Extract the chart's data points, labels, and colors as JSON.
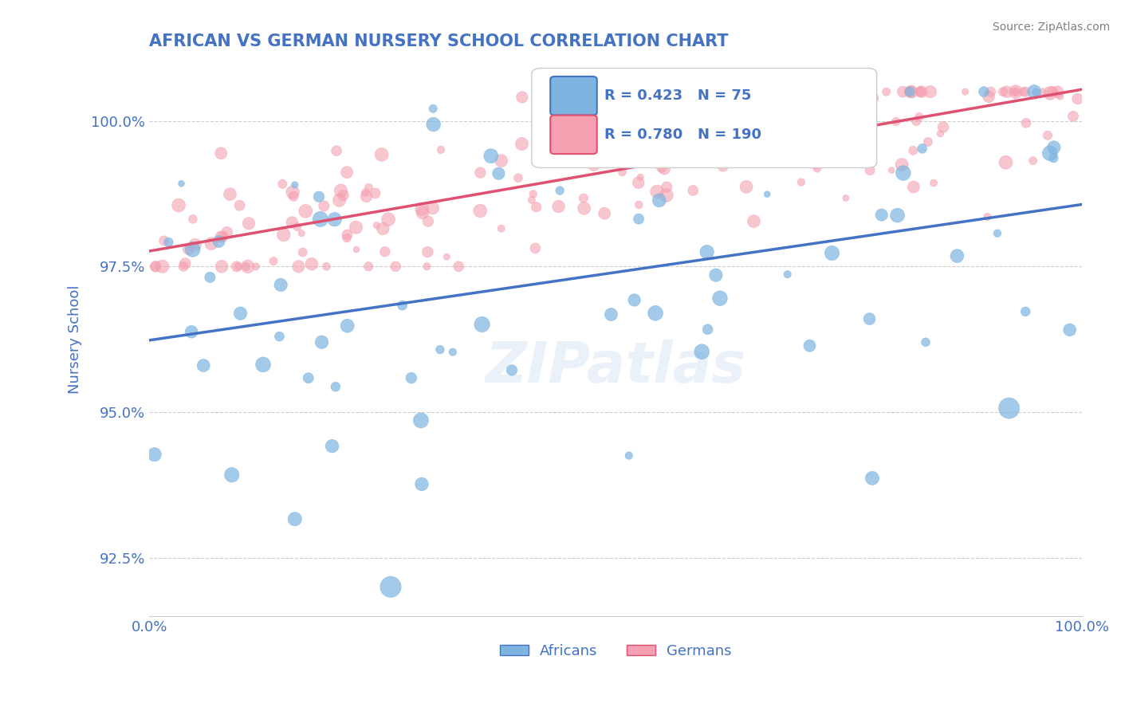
{
  "title": "AFRICAN VS GERMAN NURSERY SCHOOL CORRELATION CHART",
  "source": "Source: ZipAtlas.com",
  "xlabel": "",
  "ylabel": "Nursery School",
  "xlim": [
    0.0,
    100.0
  ],
  "ylim": [
    91.5,
    101.0
  ],
  "yticks": [
    92.5,
    95.0,
    97.5,
    100.0
  ],
  "ytick_labels": [
    "92.5%",
    "95.0%",
    "97.5%",
    "100.0%"
  ],
  "xticks": [
    0.0,
    100.0
  ],
  "xtick_labels": [
    "0.0%",
    "100.0%"
  ],
  "african_R": 0.423,
  "african_N": 75,
  "german_R": 0.78,
  "german_N": 190,
  "african_color": "#7EB4E2",
  "german_color": "#F4A0B0",
  "african_line_color": "#4472C4",
  "german_line_color": "#E05070",
  "legend_label_african": "Africans",
  "legend_label_german": "Germans",
  "title_color": "#4472C4",
  "source_color": "#808080",
  "axis_label_color": "#4472C4",
  "tick_color": "#4472C4",
  "watermark": "ZIPatlas",
  "background_color": "#FFFFFF",
  "grid_color": "#BBBBBB",
  "african_seed": 42,
  "german_seed": 99
}
